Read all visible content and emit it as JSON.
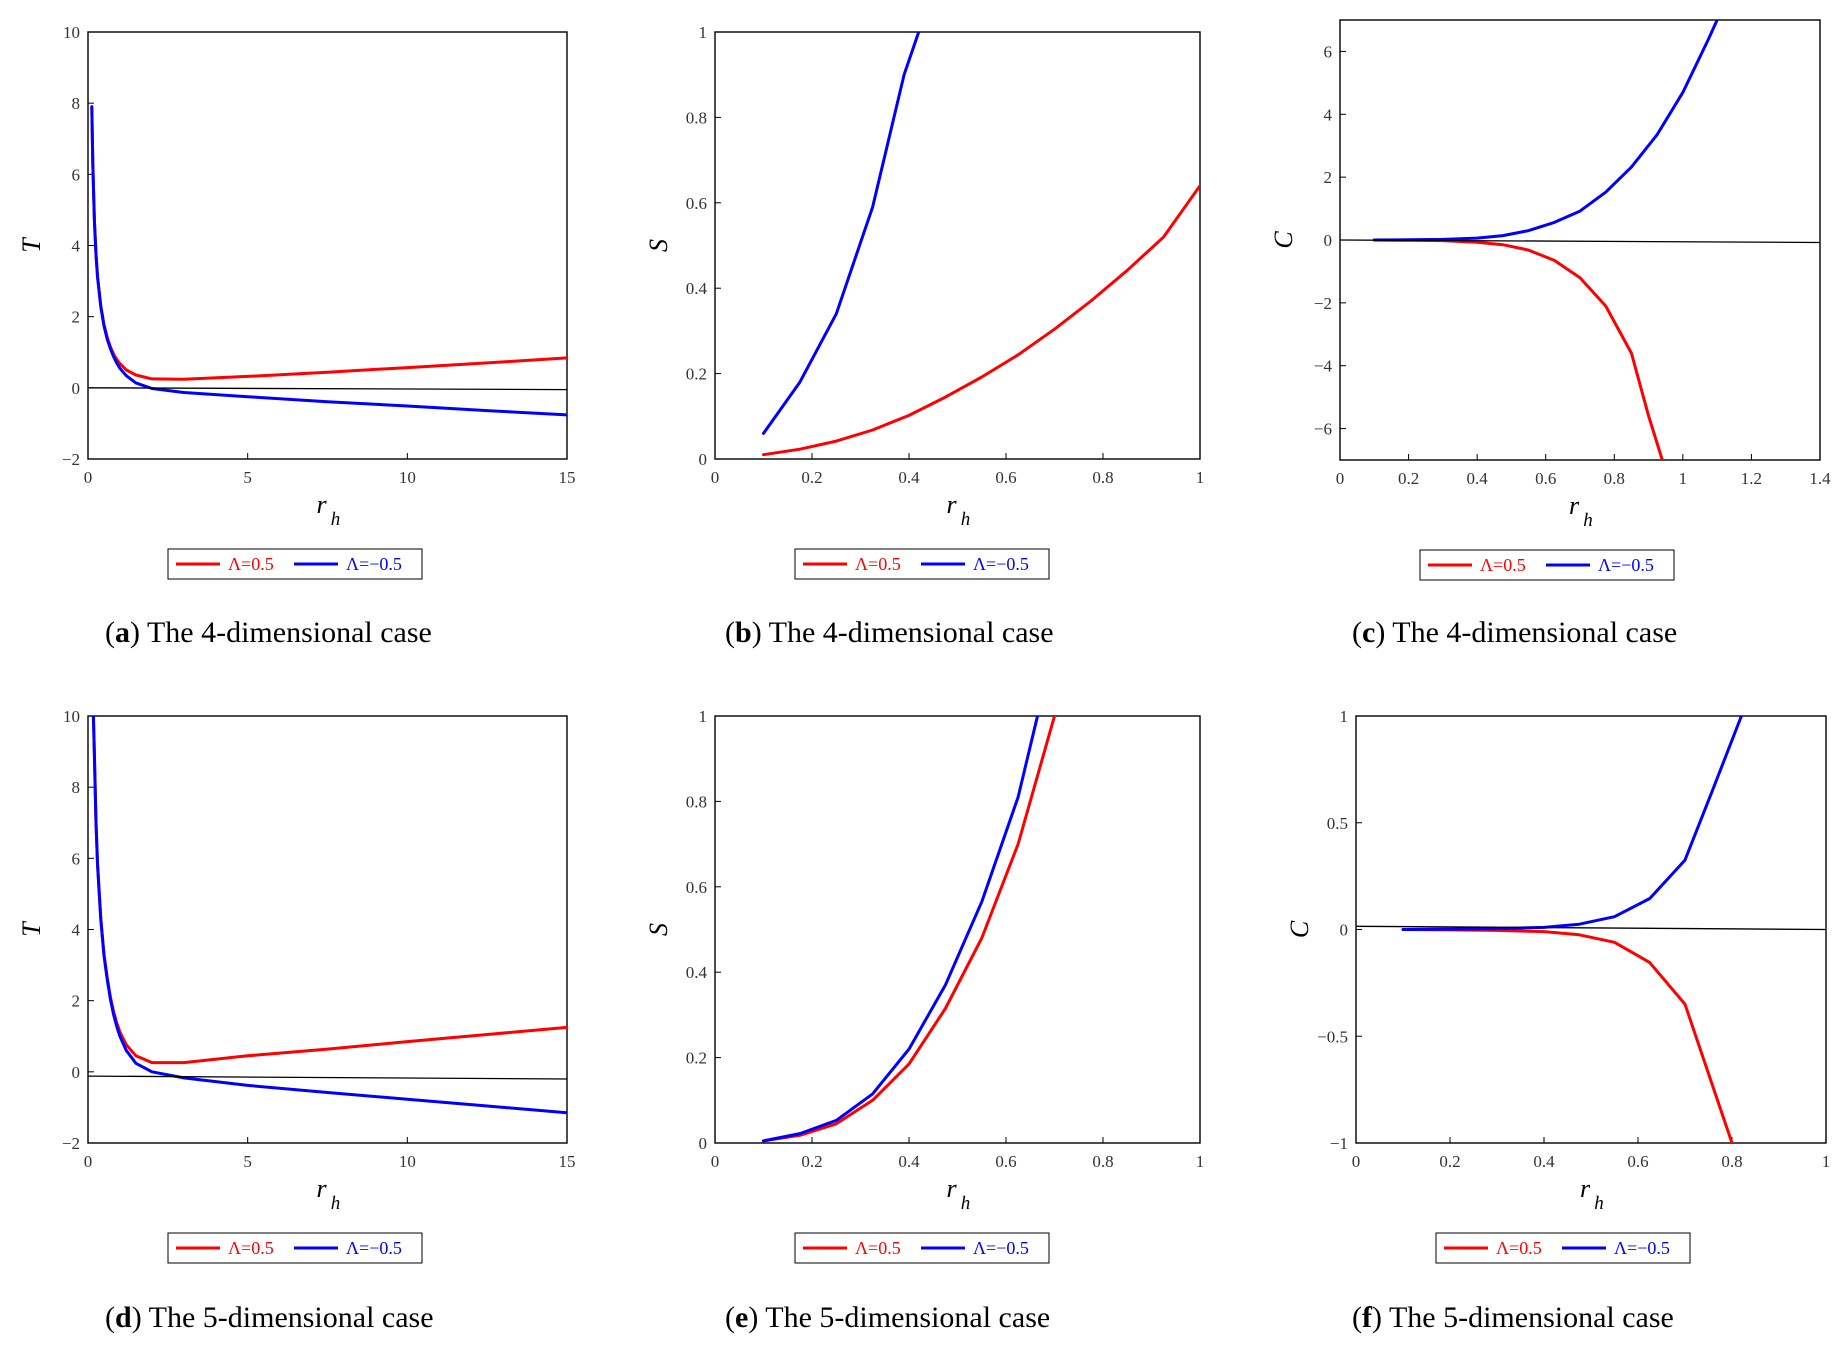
{
  "figure": {
    "colors": {
      "red": "#ff0000",
      "blue": "#0000ff",
      "zero": "#000000",
      "frame": "#000000"
    },
    "legend": {
      "red_label": "Λ=0.5",
      "blue_label": "Λ=−0.5"
    }
  },
  "chart_data": [
    {
      "id": "a",
      "type": "line",
      "caption_letter": "a",
      "caption_text": "The 4-dimensional case",
      "ylabel": "T",
      "xlabel_main": "r",
      "xlabel_sub": "h",
      "xlim": [
        0,
        15
      ],
      "ylim": [
        -2,
        10
      ],
      "xticks": [
        0,
        5,
        10,
        15
      ],
      "xtick_labels": [
        "0",
        "5",
        "10",
        "15"
      ],
      "yticks": [
        -2,
        0,
        2,
        4,
        6,
        8,
        10
      ],
      "ytick_labels": [
        "−2",
        "0",
        "2",
        "4",
        "6",
        "8",
        "10"
      ],
      "series": [
        {
          "name": "Λ=0.5",
          "color": "red",
          "x": [
            0.12,
            0.15,
            0.2,
            0.25,
            0.3,
            0.4,
            0.5,
            0.6,
            0.7,
            0.8,
            0.9,
            1.0,
            1.2,
            1.5,
            2.0,
            3.0,
            5.0,
            7.5,
            10,
            12.5,
            15
          ],
          "y": [
            7.9,
            6.3,
            4.7,
            3.75,
            3.1,
            2.3,
            1.77,
            1.42,
            1.15,
            0.95,
            0.8,
            0.68,
            0.5,
            0.36,
            0.25,
            0.24,
            0.32,
            0.44,
            0.57,
            0.7,
            0.84
          ]
        },
        {
          "name": "Λ=−0.5",
          "color": "blue",
          "x": [
            0.12,
            0.15,
            0.2,
            0.25,
            0.3,
            0.4,
            0.5,
            0.6,
            0.7,
            0.8,
            0.9,
            1.0,
            1.2,
            1.5,
            2.0,
            3.0,
            5.0,
            7.5,
            10,
            12.5,
            15
          ],
          "y": [
            7.9,
            6.3,
            4.7,
            3.75,
            3.1,
            2.28,
            1.74,
            1.37,
            1.1,
            0.88,
            0.7,
            0.55,
            0.34,
            0.14,
            -0.02,
            -0.13,
            -0.25,
            -0.39,
            -0.51,
            -0.64,
            -0.76
          ]
        },
        {
          "name": "zero-line",
          "color": "zero",
          "x": [
            0,
            15
          ],
          "y": [
            0,
            -0.05
          ]
        }
      ]
    },
    {
      "id": "b",
      "type": "line",
      "caption_letter": "b",
      "caption_text": "The 4-dimensional case",
      "ylabel": "S",
      "xlabel_main": "r",
      "xlabel_sub": "h",
      "xlim": [
        0,
        1
      ],
      "ylim": [
        0,
        1
      ],
      "xticks": [
        0,
        0.2,
        0.4,
        0.6,
        0.8,
        1
      ],
      "xtick_labels": [
        "0",
        "0.2",
        "0.4",
        "0.6",
        "0.8",
        "1"
      ],
      "yticks": [
        0,
        0.2,
        0.4,
        0.6,
        0.8,
        1
      ],
      "ytick_labels": [
        "0",
        "0.2",
        "0.4",
        "0.6",
        "0.8",
        "1"
      ],
      "series": [
        {
          "name": "Λ=0.5",
          "color": "red",
          "x": [
            0.1,
            0.175,
            0.25,
            0.325,
            0.4,
            0.475,
            0.55,
            0.625,
            0.7,
            0.775,
            0.85,
            0.925,
            1.0
          ],
          "y": [
            0.01,
            0.023,
            0.042,
            0.068,
            0.102,
            0.145,
            0.192,
            0.244,
            0.304,
            0.37,
            0.442,
            0.52,
            0.64
          ]
        },
        {
          "name": "Λ=−0.5",
          "color": "blue",
          "x": [
            0.1,
            0.175,
            0.25,
            0.325,
            0.39,
            0.42
          ],
          "y": [
            0.06,
            0.18,
            0.34,
            0.59,
            0.9,
            1.0
          ]
        }
      ]
    },
    {
      "id": "c",
      "type": "line",
      "caption_letter": "c",
      "caption_text": "The 4-dimensional case",
      "ylabel": "C",
      "xlabel_main": "r",
      "xlabel_sub": "h",
      "xlim": [
        0,
        1.4
      ],
      "ylim": [
        -7,
        7
      ],
      "xticks": [
        0,
        0.2,
        0.4,
        0.6,
        0.8,
        1,
        1.2,
        1.4
      ],
      "xtick_labels": [
        "0",
        "0.2",
        "0.4",
        "0.6",
        "0.8",
        "1",
        "1.2",
        "1.4"
      ],
      "yticks": [
        -6,
        -4,
        -2,
        0,
        2,
        4,
        6
      ],
      "ytick_labels": [
        "−6",
        "−4",
        "−2",
        "0",
        "2",
        "4",
        "6"
      ],
      "series": [
        {
          "name": "Λ=0.5",
          "color": "red",
          "x": [
            0.1,
            0.2,
            0.3,
            0.4,
            0.475,
            0.55,
            0.625,
            0.7,
            0.775,
            0.85,
            0.9,
            0.94
          ],
          "y": [
            0,
            -0.01,
            -0.02,
            -0.07,
            -0.15,
            -0.32,
            -0.65,
            -1.2,
            -2.1,
            -3.6,
            -5.6,
            -7.0
          ]
        },
        {
          "name": "Λ=−0.5",
          "color": "blue",
          "x": [
            0.1,
            0.2,
            0.3,
            0.4,
            0.475,
            0.55,
            0.625,
            0.7,
            0.775,
            0.85,
            0.925,
            1.0,
            1.075,
            1.1
          ],
          "y": [
            0,
            0.005,
            0.02,
            0.06,
            0.14,
            0.3,
            0.56,
            0.92,
            1.52,
            2.32,
            3.35,
            4.7,
            6.4,
            7.0
          ]
        },
        {
          "name": "zero-line",
          "color": "zero",
          "x": [
            0,
            1.4
          ],
          "y": [
            0,
            -0.08
          ]
        }
      ]
    },
    {
      "id": "d",
      "type": "line",
      "caption_letter": "d",
      "caption_text": "The 5-dimensional case",
      "ylabel": "T",
      "xlabel_main": "r",
      "xlabel_sub": "h",
      "xlim": [
        0,
        15
      ],
      "ylim": [
        -2,
        10
      ],
      "xticks": [
        0,
        5,
        10,
        15
      ],
      "xtick_labels": [
        "0",
        "5",
        "10",
        "15"
      ],
      "yticks": [
        -2,
        0,
        2,
        4,
        6,
        8,
        10
      ],
      "ytick_labels": [
        "−2",
        "0",
        "2",
        "4",
        "6",
        "8",
        "10"
      ],
      "series": [
        {
          "name": "Λ=0.5",
          "color": "red",
          "x": [
            0.17,
            0.2,
            0.25,
            0.3,
            0.4,
            0.5,
            0.6,
            0.7,
            0.8,
            0.9,
            1.0,
            1.2,
            1.5,
            2.0,
            3.0,
            5.0,
            7.5,
            10,
            12.5,
            15
          ],
          "y": [
            10.0,
            8.9,
            7.0,
            5.8,
            4.3,
            3.3,
            2.65,
            2.1,
            1.7,
            1.38,
            1.12,
            0.76,
            0.45,
            0.26,
            0.26,
            0.45,
            0.64,
            0.85,
            1.05,
            1.25
          ]
        },
        {
          "name": "Λ=−0.5",
          "color": "blue",
          "x": [
            0.17,
            0.2,
            0.25,
            0.3,
            0.4,
            0.5,
            0.6,
            0.7,
            0.8,
            0.9,
            1.0,
            1.2,
            1.5,
            2.0,
            3.0,
            5.0,
            7.5,
            10,
            12.5,
            15
          ],
          "y": [
            10.0,
            8.9,
            7.0,
            5.8,
            4.28,
            3.26,
            2.6,
            2.04,
            1.62,
            1.28,
            1.0,
            0.6,
            0.24,
            0.0,
            -0.17,
            -0.38,
            -0.58,
            -0.77,
            -0.96,
            -1.15
          ]
        },
        {
          "name": "zero-line",
          "color": "zero",
          "x": [
            0,
            15
          ],
          "y": [
            -0.12,
            -0.2
          ]
        }
      ]
    },
    {
      "id": "e",
      "type": "line",
      "caption_letter": "e",
      "caption_text": "The 5-dimensional case",
      "ylabel": "S",
      "xlabel_main": "r",
      "xlabel_sub": "h",
      "xlim": [
        0,
        1
      ],
      "ylim": [
        0,
        1
      ],
      "xticks": [
        0,
        0.2,
        0.4,
        0.6,
        0.8,
        1
      ],
      "xtick_labels": [
        "0",
        "0.2",
        "0.4",
        "0.6",
        "0.8",
        "1"
      ],
      "yticks": [
        0,
        0.2,
        0.4,
        0.6,
        0.8,
        1
      ],
      "ytick_labels": [
        "0",
        "0.2",
        "0.4",
        "0.6",
        "0.8",
        "1"
      ],
      "series": [
        {
          "name": "Λ=0.5",
          "color": "red",
          "x": [
            0.1,
            0.175,
            0.25,
            0.325,
            0.4,
            0.475,
            0.55,
            0.625,
            0.7
          ],
          "y": [
            0.005,
            0.018,
            0.045,
            0.1,
            0.185,
            0.315,
            0.48,
            0.7,
            1.0
          ]
        },
        {
          "name": "Λ=−0.5",
          "color": "blue",
          "x": [
            0.1,
            0.175,
            0.25,
            0.325,
            0.4,
            0.475,
            0.55,
            0.625,
            0.665
          ],
          "y": [
            0.005,
            0.022,
            0.053,
            0.115,
            0.22,
            0.37,
            0.565,
            0.81,
            1.0
          ]
        }
      ]
    },
    {
      "id": "f",
      "type": "line",
      "caption_letter": "f",
      "caption_text": "The 5-dimensional case",
      "ylabel": "C",
      "xlabel_main": "r",
      "xlabel_sub": "h",
      "xlim": [
        0,
        1
      ],
      "ylim": [
        -1,
        1
      ],
      "xticks": [
        0,
        0.2,
        0.4,
        0.6,
        0.8,
        1
      ],
      "xtick_labels": [
        "0",
        "0.2",
        "0.4",
        "0.6",
        "0.8",
        "1"
      ],
      "yticks": [
        -1,
        -0.5,
        0,
        0.5,
        1
      ],
      "ytick_labels": [
        "−1",
        "−0.5",
        "0",
        "0.5",
        "1"
      ],
      "series": [
        {
          "name": "Λ=0.5",
          "color": "red",
          "x": [
            0.1,
            0.2,
            0.3,
            0.4,
            0.475,
            0.55,
            0.625,
            0.7,
            0.76,
            0.8
          ],
          "y": [
            0,
            -0.002,
            -0.004,
            -0.01,
            -0.025,
            -0.06,
            -0.155,
            -0.35,
            -0.74,
            -1.0
          ]
        },
        {
          "name": "Λ=−0.5",
          "color": "blue",
          "x": [
            0.1,
            0.2,
            0.3,
            0.4,
            0.475,
            0.55,
            0.625,
            0.7,
            0.76,
            0.82
          ],
          "y": [
            0,
            0.002,
            0.004,
            0.01,
            0.025,
            0.06,
            0.145,
            0.325,
            0.66,
            1.0
          ]
        },
        {
          "name": "zero-line",
          "color": "zero",
          "x": [
            0,
            1
          ],
          "y": [
            0.015,
            0
          ]
        }
      ]
    }
  ]
}
